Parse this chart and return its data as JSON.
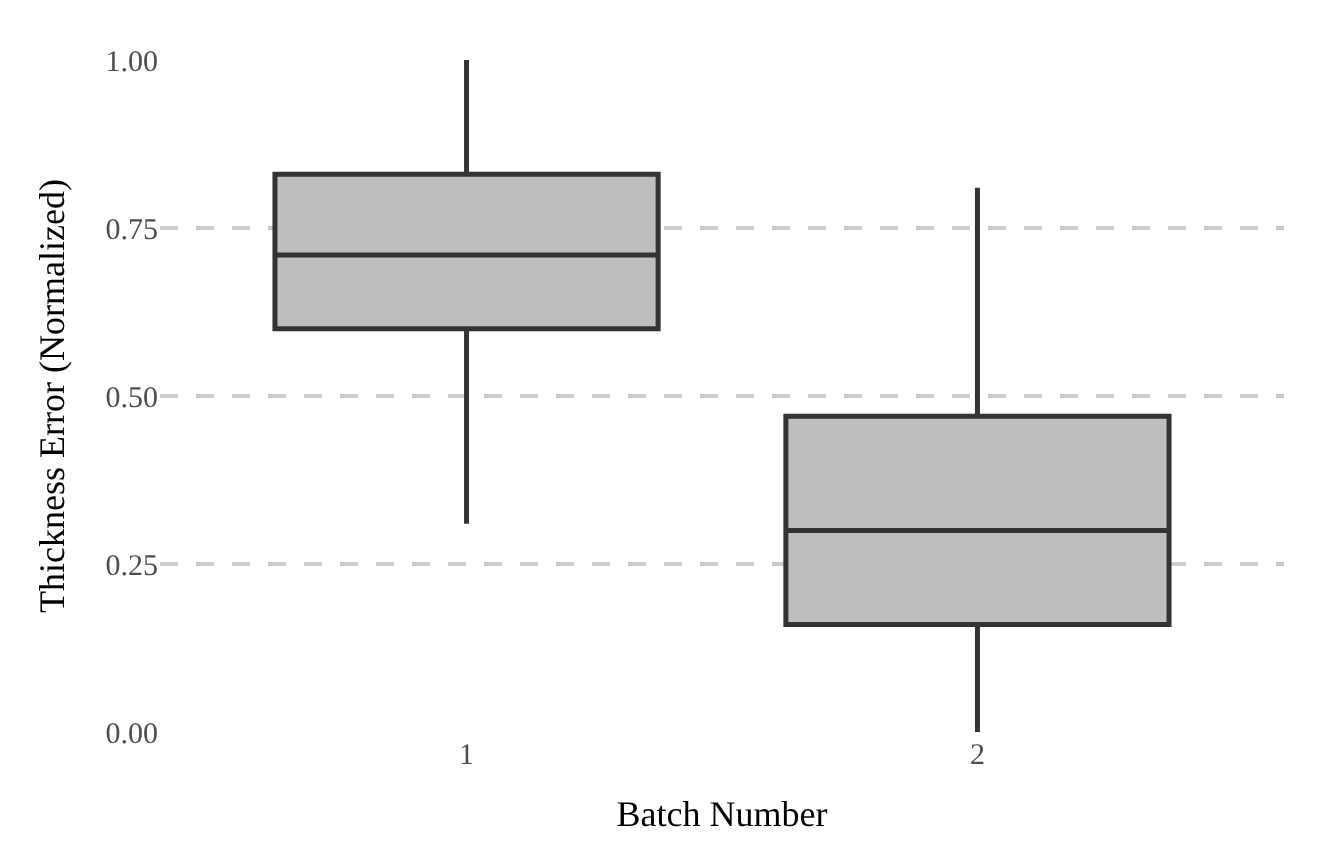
{
  "chart_data": {
    "type": "box",
    "xlabel": "Batch Number",
    "ylabel": "Thickness Error (Normalized)",
    "categories": [
      "1",
      "2"
    ],
    "boxes": [
      {
        "low": 0.31,
        "q1": 0.6,
        "median": 0.71,
        "q3": 0.83,
        "high": 1.0
      },
      {
        "low": 0.0,
        "q1": 0.16,
        "median": 0.3,
        "q3": 0.47,
        "high": 0.81
      }
    ],
    "color": "#bebebe",
    "ylim": [
      0,
      1
    ],
    "yticks": [
      {
        "value": 0,
        "label": "0.00"
      },
      {
        "value": 0.25,
        "label": "0.25"
      },
      {
        "value": 0.5,
        "label": "0.50"
      },
      {
        "value": 0.75,
        "label": "0.75"
      },
      {
        "value": 1,
        "label": "1.00"
      }
    ],
    "grid": "y",
    "legend": false
  }
}
